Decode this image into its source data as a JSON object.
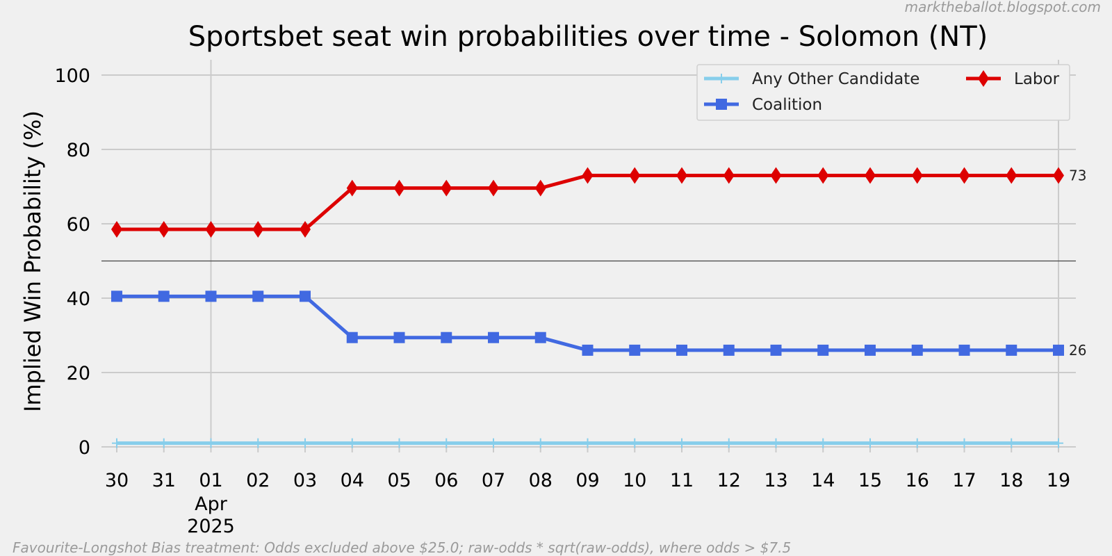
{
  "watermark": "marktheballot.blogspot.com",
  "footnote": "Favourite-Longshot Bias treatment: Odds excluded above $25.0; raw-odds * sqrt(raw-odds), where odds > $7.5",
  "chart_data": {
    "type": "line",
    "title": "Sportsbet seat win probabilities over time - Solomon (NT)",
    "xlabel": "",
    "ylabel": "Implied Win Probability (%)",
    "ylim": [
      0,
      100
    ],
    "yticks": [
      0,
      20,
      40,
      60,
      80,
      100
    ],
    "grid": true,
    "reference_line_y": 50,
    "x_tick_labels": [
      "30",
      "31",
      "01",
      "02",
      "03",
      "04",
      "05",
      "06",
      "07",
      "08",
      "09",
      "10",
      "11",
      "12",
      "13",
      "14",
      "15",
      "16",
      "17",
      "18",
      "19"
    ],
    "x_month_label": "Apr\n2025",
    "x": [
      "2025-03-30",
      "2025-03-31",
      "2025-04-01",
      "2025-04-02",
      "2025-04-03",
      "2025-04-04",
      "2025-04-05",
      "2025-04-06",
      "2025-04-07",
      "2025-04-08",
      "2025-04-09",
      "2025-04-10",
      "2025-04-11",
      "2025-04-12",
      "2025-04-13",
      "2025-04-14",
      "2025-04-15",
      "2025-04-16",
      "2025-04-17",
      "2025-04-18",
      "2025-04-19"
    ],
    "legend_position": "top-right",
    "series": [
      {
        "name": "Any Other Candidate",
        "color": "#87ceeb",
        "marker": "plus",
        "values": [
          1,
          1,
          1,
          1,
          1,
          1,
          1,
          1,
          1,
          1,
          1,
          1,
          1,
          1,
          1,
          1,
          1,
          1,
          1,
          1,
          1
        ]
      },
      {
        "name": "Coalition",
        "color": "#4169e1",
        "marker": "square",
        "values": [
          40.5,
          40.5,
          40.5,
          40.5,
          40.5,
          29.4,
          29.4,
          29.4,
          29.4,
          29.4,
          26,
          26,
          26,
          26,
          26,
          26,
          26,
          26,
          26,
          26,
          26
        ],
        "end_label": "26"
      },
      {
        "name": "Labor",
        "color": "#dd0000",
        "marker": "diamond",
        "values": [
          58.5,
          58.5,
          58.5,
          58.5,
          58.5,
          69.6,
          69.6,
          69.6,
          69.6,
          69.6,
          73,
          73,
          73,
          73,
          73,
          73,
          73,
          73,
          73,
          73,
          73
        ],
        "end_label": "73"
      }
    ]
  }
}
